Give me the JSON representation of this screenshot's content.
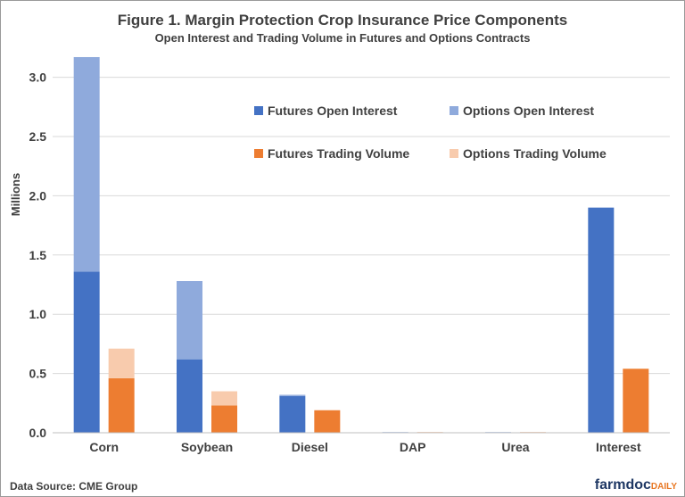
{
  "chart_data": {
    "type": "bar",
    "title": "Figure 1. Margin Protection Crop Insurance Price Components",
    "subtitle": "Open Interest and Trading Volume in Futures and Options Contracts",
    "xlabel": "",
    "ylabel": "Millions",
    "ylim": [
      0,
      3.2
    ],
    "yticks": [
      "0.0",
      "0.5",
      "1.0",
      "1.5",
      "2.0",
      "2.5",
      "3.0"
    ],
    "categories": [
      "Corn",
      "Soybean",
      "Diesel",
      "DAP",
      "Urea",
      "Interest"
    ],
    "stacks": [
      {
        "name": "Open Interest",
        "series": [
          {
            "name": "Futures Open Interest",
            "color": "#4472c4",
            "values": [
              1.36,
              0.62,
              0.31,
              0.005,
              0.005,
              1.9
            ]
          },
          {
            "name": "Options Open Interest",
            "color": "#8faadc",
            "values": [
              1.81,
              0.66,
              0.01,
              0.0,
              0.0,
              0.0
            ]
          }
        ]
      },
      {
        "name": "Trading Volume",
        "series": [
          {
            "name": "Futures Trading Volume",
            "color": "#ed7d31",
            "values": [
              0.46,
              0.23,
              0.19,
              0.005,
              0.005,
              0.54
            ]
          },
          {
            "name": "Options Trading Volume",
            "color": "#f8cbad",
            "values": [
              0.25,
              0.12,
              0.0,
              0.0,
              0.0,
              0.0
            ]
          }
        ]
      }
    ],
    "legend_location": "top-right",
    "grid": true
  },
  "source": "Data Source: CME Group",
  "logo": {
    "part1": "farmdoc",
    "part2": "DAILY"
  }
}
